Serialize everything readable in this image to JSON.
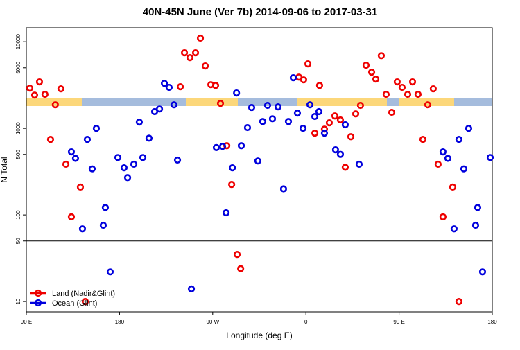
{
  "chart_data": {
    "type": "scatter",
    "title": "40N-45N June (Ver 7b)   2014-09-06 to 2017-03-31",
    "xlabel": "Longitude (deg E)",
    "ylabel": "N Total",
    "log_y": true,
    "legend": "bottom-left",
    "xlim": [
      90,
      540
    ],
    "ylim": [
      7.6,
      14500
    ],
    "xticks": [
      {
        "value": 90,
        "label": "90 E"
      },
      180,
      {
        "value": 270,
        "label": "90 W"
      },
      {
        "value": 360,
        "label": "0"
      },
      {
        "value": 450,
        "label": "90 E"
      },
      {
        "value": 540,
        "label": "180"
      }
    ],
    "yticks": [
      10,
      50,
      100,
      500,
      1000,
      5000,
      10000
    ],
    "divider": 50,
    "series": [
      {
        "name": "Land (Nadir&Glint)",
        "color": "#ee0000",
        "x": [
          93.3,
          98,
          102.7,
          108,
          113.4,
          118,
          123.4,
          128.2,
          133.5,
          142.2,
          146.9,
          238.7,
          242.7,
          248,
          253.4,
          258.1,
          262.8,
          268.2,
          272.8,
          277.5,
          283.6,
          288.3,
          293.6,
          297,
          353.2,
          357.8,
          361.9,
          368.6,
          373.2,
          377.9,
          382.6,
          388,
          393.3,
          398,
          403.4,
          408.1,
          412.7,
          418.1,
          423.5,
          427.5,
          432.8,
          437.5,
          442.9,
          448.2,
          452.9,
          458.3,
          463,
          468.3,
          473,
          477.7,
          483,
          487.7,
          492.4,
          501.8,
          507.8
        ],
        "values": [
          2910,
          2420,
          3440,
          2470,
          745,
          1870,
          2860,
          385,
          95,
          210,
          10,
          3020,
          7450,
          6550,
          7450,
          11000,
          5250,
          3190,
          3130,
          1940,
          630,
          225,
          35,
          24,
          3900,
          3630,
          5550,
          880,
          3130,
          980,
          1160,
          1390,
          1250,
          355,
          800,
          1470,
          1840,
          5350,
          4450,
          3700,
          6900,
          2470,
          1530,
          3440,
          2970,
          2470,
          3440,
          2470,
          745,
          1870,
          2860,
          385,
          95,
          210,
          10
        ]
      },
      {
        "name": "Ocean (Glint)",
        "color": "#0000dd",
        "x": [
          133.5,
          137.5,
          144.2,
          148.9,
          153.6,
          157.6,
          164.3,
          166.3,
          171,
          178.4,
          184.4,
          187.8,
          193.8,
          199.1,
          202.5,
          208.5,
          213.9,
          218.6,
          223.3,
          227.9,
          232.6,
          236,
          249.4,
          273.5,
          279.5,
          282.9,
          289,
          293,
          297.6,
          303.6,
          307.6,
          313.6,
          318.3,
          323,
          327.7,
          333.1,
          338.4,
          343.1,
          347.8,
          351.8,
          357.2,
          363.9,
          368.6,
          372.6,
          377.9,
          388.6,
          393.3,
          398,
          411.4,
          492.4,
          497.1,
          503.1,
          507.8,
          512.5,
          517.2,
          523.9,
          525.9,
          530.6,
          538
        ],
        "values": [
          535,
          450,
          69,
          745,
          340,
          1000,
          76,
          122,
          22,
          460,
          350,
          270,
          385,
          1180,
          460,
          770,
          1560,
          1670,
          3310,
          2970,
          1870,
          430,
          14,
          600,
          620,
          106,
          350,
          2560,
          630,
          1020,
          1740,
          420,
          1200,
          1840,
          1290,
          1770,
          200,
          1200,
          3840,
          1500,
          1000,
          1870,
          1370,
          1560,
          880,
          565,
          500,
          1100,
          385,
          535,
          450,
          69,
          745,
          340,
          1000,
          76,
          122,
          22,
          460
        ]
      }
    ]
  }
}
